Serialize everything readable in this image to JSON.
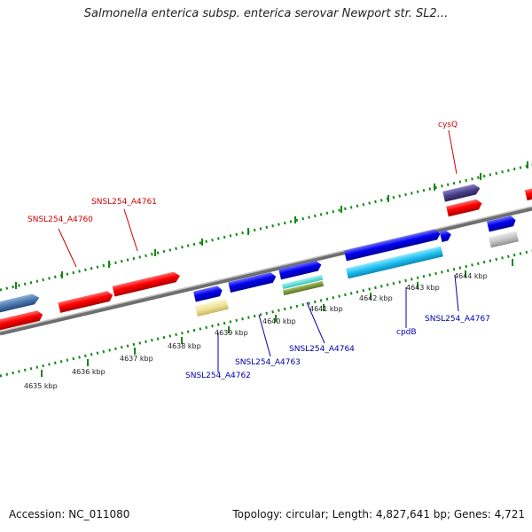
{
  "header": {
    "title": "Salmonella enterica subsp. enterica serovar Newport str. SL2..."
  },
  "footer": {
    "accession": "Accession: NC_011080",
    "topology": "Topology: circular; Length: 4,827,641 bp; Genes: 4,721"
  },
  "colors": {
    "backbone": "#8a8a8a",
    "tick_dots": "#118811",
    "forward_label": "#cc0000",
    "reverse_label": "#0000aa",
    "forward_gene": "#ff0000",
    "reverse_gene": "#0000ee"
  },
  "scale_labels": [
    {
      "text": "4635 kbp"
    },
    {
      "text": "4636 kbp"
    },
    {
      "text": "4637 kbp"
    },
    {
      "text": "4638 kbp"
    },
    {
      "text": "4639 kbp"
    },
    {
      "text": "4640 kbp"
    },
    {
      "text": "4641 kbp"
    },
    {
      "text": "4642 kbp"
    },
    {
      "text": "4643 kbp"
    },
    {
      "text": "4644 kbp"
    }
  ],
  "gene_labels": {
    "a4760": "SNSL254_A4760",
    "a4761": "SNSL254_A4761",
    "cysq": "cysQ",
    "a4762": "SNSL254_A4762",
    "a4763": "SNSL254_A4763",
    "a4764": "SNSL254_A4764",
    "cpdb": "cpdB",
    "a4767": "SNSL254_A4767"
  }
}
